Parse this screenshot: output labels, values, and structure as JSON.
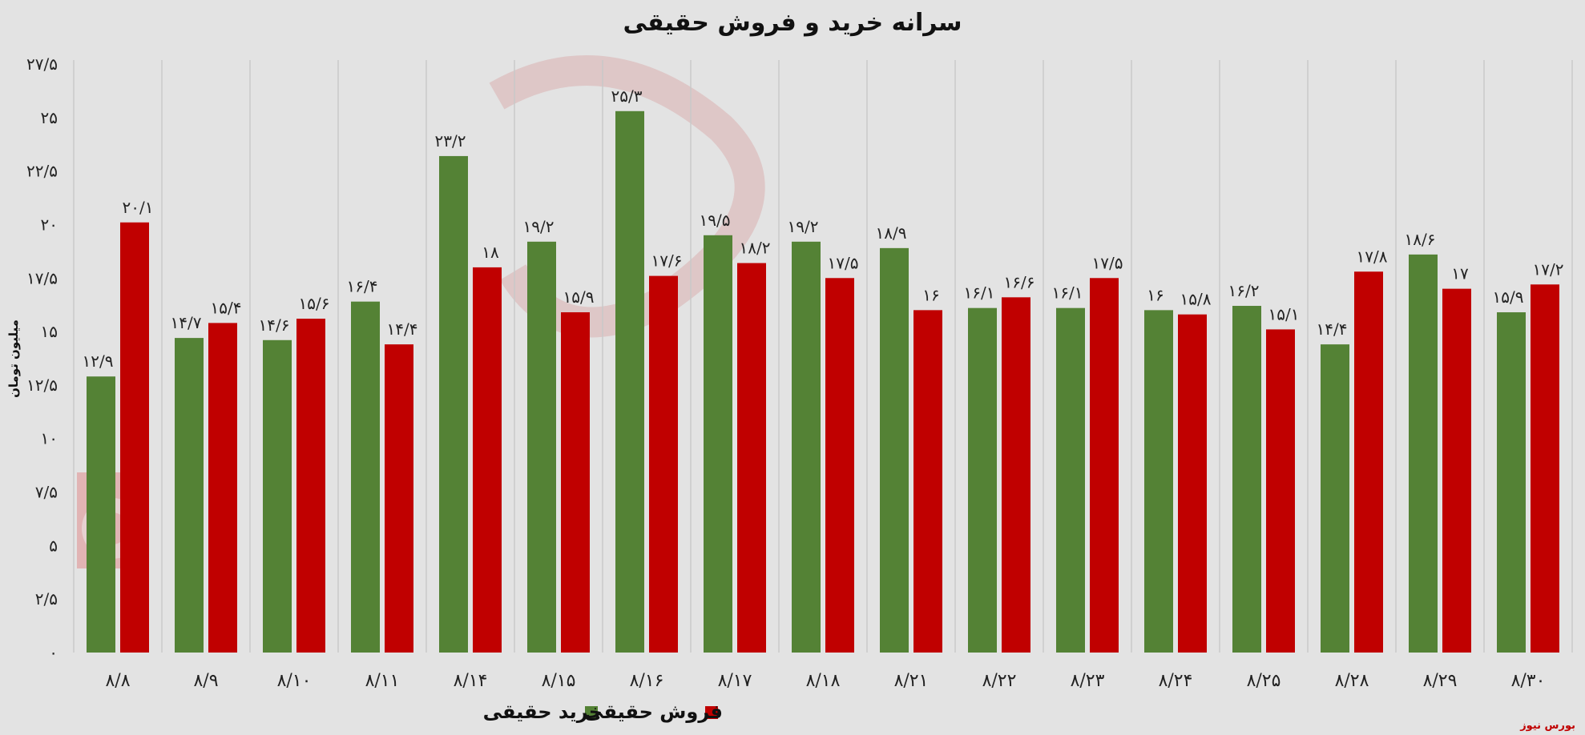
{
  "chart_data": {
    "type": "bar",
    "title": "سرانه خرید و فروش حقیقی",
    "ylabel": "میلیون تومان",
    "xlabel": "",
    "ylim": [
      0,
      27.5
    ],
    "yticks": [
      "۰",
      "۲/۵",
      "۵",
      "۷/۵",
      "۱۰",
      "۱۲/۵",
      "۱۵",
      "۱۷/۵",
      "۲۰",
      "۲۲/۵",
      "۲۵",
      "۲۷/۵"
    ],
    "grid": "vertical",
    "legend_position": "bottom-center",
    "categories": [
      "۸/۸",
      "۸/۹",
      "۸/۱۰",
      "۸/۱۱",
      "۸/۱۴",
      "۸/۱۵",
      "۸/۱۶",
      "۸/۱۷",
      "۸/۱۸",
      "۸/۲۱",
      "۸/۲۲",
      "۸/۲۳",
      "۸/۲۴",
      "۸/۲۵",
      "۸/۲۸",
      "۸/۲۹",
      "۸/۳۰"
    ],
    "series": [
      {
        "name": "خرید حقیقی",
        "color": "#548235",
        "values": [
          12.9,
          14.7,
          14.6,
          16.4,
          23.2,
          19.2,
          25.3,
          19.5,
          19.2,
          18.9,
          16.1,
          16.1,
          16,
          16.2,
          14.4,
          18.6,
          15.9
        ],
        "labels": [
          "۱۲/۹",
          "۱۴/۷",
          "۱۴/۶",
          "۱۶/۴",
          "۲۳/۲",
          "۱۹/۲",
          "۲۵/۳",
          "۱۹/۵",
          "۱۹/۲",
          "۱۸/۹",
          "۱۶/۱",
          "۱۶/۱",
          "۱۶",
          "۱۶/۲",
          "۱۴/۴",
          "۱۸/۶",
          "۱۵/۹"
        ]
      },
      {
        "name": "فروش حقیقی",
        "color": "#c00000",
        "values": [
          20.1,
          15.4,
          15.6,
          14.4,
          18,
          15.9,
          17.6,
          18.2,
          17.5,
          16,
          16.6,
          17.5,
          15.8,
          15.1,
          17.8,
          17,
          17.2
        ],
        "labels": [
          "۲۰/۱",
          "۱۵/۴",
          "۱۵/۶",
          "۱۴/۴",
          "۱۸",
          "۱۵/۹",
          "۱۷/۶",
          "۱۸/۲",
          "۱۷/۵",
          "۱۶",
          "۱۶/۶",
          "۱۷/۵",
          "۱۵/۸",
          "۱۵/۱",
          "۱۷/۸",
          "۱۷",
          "۱۷/۲"
        ]
      }
    ]
  },
  "footer": {
    "credit": "بورس نیوز"
  }
}
